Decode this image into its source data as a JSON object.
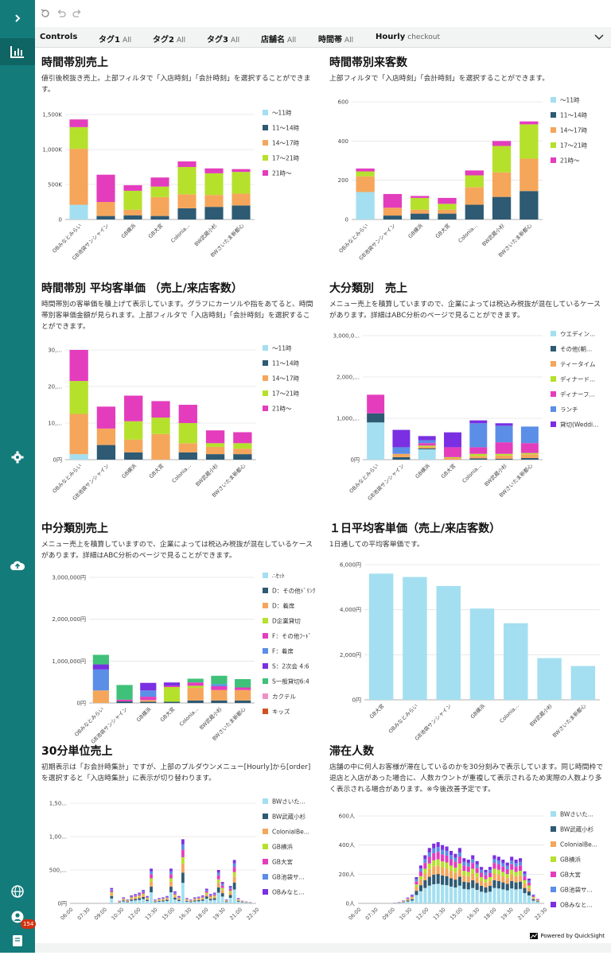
{
  "toolbar": {
    "undo": "undo",
    "redo": "redo"
  },
  "controls": {
    "label": "Controls",
    "filters": [
      {
        "name": "タグ1",
        "value": "All"
      },
      {
        "name": "タグ2",
        "value": "All"
      },
      {
        "name": "タグ3",
        "value": "All"
      },
      {
        "name": "店舗名",
        "value": "All"
      },
      {
        "name": "時間帯",
        "value": "All"
      },
      {
        "name": "Hourly",
        "value": "checkout"
      }
    ]
  },
  "colors": {
    "sidebar": "#147b7b",
    "palette": [
      "#a3dff0",
      "#2e5a73",
      "#f5a65b",
      "#b5e12c",
      "#e33dbd",
      "#5b8ee6",
      "#7a2fe2",
      "#3fc17a",
      "#f090c8",
      "#d2501e"
    ]
  },
  "sidebar_icons": [
    "chevron-right-icon",
    "dashboard-icon",
    "settings-icon",
    "upload-icon",
    "globe-icon",
    "user-icon",
    "book-icon"
  ],
  "notification_count": "154",
  "powered_by": "Powered by QuickSight",
  "panels": [
    {
      "title": "時間帯別売上",
      "desc": "値引後税抜き売上。上部フィルタで「入店時刻」「会計時刻」を選択することができます。",
      "chart_data": {
        "type": "bar",
        "stacked": true,
        "categories": [
          "OBみなとみらい",
          "GB池袋サンシャイン",
          "GB横浜",
          "GB大宮",
          "Colonia...",
          "BW武蔵小杉",
          "BWさいたま新都心"
        ],
        "yticks": [
          "0",
          "500K",
          "1,000K",
          "1,500K"
        ],
        "ymax": 1500,
        "series": [
          {
            "name": "～11時",
            "values": [
              210,
              0,
              0,
              0,
              0,
              0,
              0
            ]
          },
          {
            "name": "11～14時",
            "values": [
              0,
              50,
              60,
              50,
              160,
              180,
              200
            ]
          },
          {
            "name": "14～17時",
            "values": [
              800,
              200,
              80,
              270,
              200,
              170,
              170
            ]
          },
          {
            "name": "17～21時",
            "values": [
              310,
              0,
              270,
              150,
              390,
              310,
              310
            ]
          },
          {
            "name": "21時～",
            "values": [
              110,
              390,
              80,
              130,
              80,
              70,
              40
            ]
          }
        ],
        "legend": "right"
      }
    },
    {
      "title": "時間帯別来客数",
      "desc": "上部フィルタで「入店時刻」「会計時刻」を選択することができます。",
      "chart_data": {
        "type": "bar",
        "stacked": true,
        "categories": [
          "OBみなとみらい",
          "GB池袋サンシャイン",
          "GB横浜",
          "GB大宮",
          "Colonia...",
          "BW武蔵小杉",
          "BWさいたま新都心"
        ],
        "yticks": [
          "0",
          "200",
          "400",
          "600"
        ],
        "ymax": 600,
        "series": [
          {
            "name": "～11時",
            "values": [
              140,
              0,
              0,
              0,
              0,
              0,
              0
            ]
          },
          {
            "name": "11～14時",
            "values": [
              0,
              20,
              30,
              30,
              75,
              115,
              145
            ]
          },
          {
            "name": "14～17時",
            "values": [
              80,
              40,
              20,
              20,
              90,
              125,
              165
            ]
          },
          {
            "name": "17～21時",
            "values": [
              25,
              0,
              60,
              30,
              60,
              135,
              175
            ]
          },
          {
            "name": "21時～",
            "values": [
              15,
              70,
              10,
              30,
              25,
              25,
              15
            ]
          }
        ],
        "legend": "right"
      }
    },
    {
      "title": "時間帯別 平均客単価 （売上/来店客数）",
      "desc": "時間帯別の客単価を積上げて表示しています。グラフにカーソルや指をあてると、時間帯別客単価金額が見られます。上部フィルタで「入店時刻」「会計時刻」を選択することができます。",
      "chart_data": {
        "type": "bar",
        "stacked": true,
        "categories": [
          "OBみなとみらい",
          "GB池袋サンシャイン",
          "GB横浜",
          "GB大宮",
          "Colonia...",
          "BW武蔵小杉",
          "BWさいたま新都心"
        ],
        "yticks": [
          "0円",
          "10,...",
          "20,...",
          "30,..."
        ],
        "ymax": 30,
        "series": [
          {
            "name": "～11時",
            "values": [
              1.5,
              0,
              0,
              0,
              0,
              0,
              0
            ]
          },
          {
            "name": "11～14時",
            "values": [
              0,
              4,
              2,
              0,
              2,
              1.5,
              1.5
            ]
          },
          {
            "name": "14～17時",
            "values": [
              11,
              4.5,
              3.5,
              7,
              2.5,
              2,
              1.5
            ]
          },
          {
            "name": "17～21時",
            "values": [
              9,
              0,
              5,
              4.5,
              5.5,
              1,
              1.5
            ]
          },
          {
            "name": "21時～",
            "values": [
              8.5,
              6,
              7,
              4.5,
              5,
              3.5,
              3
            ]
          }
        ],
        "legend": "right"
      }
    },
    {
      "title": "大分類別　売上",
      "desc": "メニュー売上を積算していますので、企業によっては税込み税抜が混在しているケースがあります。詳細はABC分析のページで見ることができます。",
      "chart_data": {
        "type": "bar",
        "stacked": true,
        "categories": [
          "OBみなとみらい",
          "GB池袋サンシャイン",
          "GB横浜",
          "GB大宮",
          "Colonia...",
          "BW武蔵小杉",
          "BWさいたま新都心"
        ],
        "yticks": [
          "0円",
          "1,000,...",
          "2,000,...",
          "3,000,0..."
        ],
        "ymax": 3000,
        "series": [
          {
            "name": "ウエディン...",
            "values": [
              900,
              0,
              250,
              0,
              0,
              0,
              0
            ]
          },
          {
            "name": "その他(朝...",
            "values": [
              220,
              60,
              20,
              0,
              30,
              20,
              40
            ]
          },
          {
            "name": "ティータイム",
            "values": [
              0,
              80,
              40,
              40,
              60,
              80,
              90
            ]
          },
          {
            "name": "ディナード...",
            "values": [
              0,
              0,
              30,
              20,
              50,
              40,
              30
            ]
          },
          {
            "name": "ディナーフ...",
            "values": [
              450,
              0,
              60,
              240,
              160,
              280,
              240
            ]
          },
          {
            "name": "ランチ",
            "values": [
              0,
              160,
              70,
              0,
              580,
              400,
              400
            ]
          },
          {
            "name": "貸切(Weddi...",
            "values": [
              0,
              420,
              100,
              360,
              70,
              60,
              0
            ]
          }
        ],
        "legend": "right"
      }
    },
    {
      "title": "中分類別売上",
      "desc": "メニュー売上を積算していますので、企業によっては税込み税抜が混在しているケースがあります。詳細はABC分析のページで見ることができます。",
      "chart_data": {
        "type": "bar",
        "stacked": true,
        "categories": [
          "OBみなとみらい",
          "GB池袋サンシャイン",
          "GB横浜",
          "GB大宮",
          "Colonia...",
          "BW武蔵小杉",
          "BWさいたま新都心"
        ],
        "yticks": [
          "0円",
          "1,000,000円",
          "2,000,000円",
          "3,000,000円"
        ],
        "ymax": 3000,
        "series": [
          {
            "name": "∴ｾｯﾄ",
            "values": [
              0,
              0,
              0,
              0,
              0,
              0,
              0
            ]
          },
          {
            "name": "D：その他ﾄﾞﾘﾝｸ",
            "values": [
              0,
              40,
              30,
              30,
              60,
              60,
              60
            ]
          },
          {
            "name": "D：着席",
            "values": [
              300,
              0,
              40,
              0,
              300,
              250,
              250
            ]
          },
          {
            "name": "D企業貸切",
            "values": [
              0,
              0,
              0,
              350,
              50,
              0,
              0
            ]
          },
          {
            "name": "F：その他ﾌｰﾄﾞ",
            "values": [
              0,
              40,
              80,
              30,
              80,
              90,
              60
            ]
          },
          {
            "name": "F：着席",
            "values": [
              500,
              0,
              150,
              0,
              0,
              50,
              0
            ]
          },
          {
            "name": "S：2次会 4:6",
            "values": [
              120,
              0,
              180,
              80,
              0,
              0,
              0
            ]
          },
          {
            "name": "S一般貸切6:4",
            "values": [
              230,
              350,
              0,
              0,
              90,
              200,
              200
            ]
          },
          {
            "name": "カクテル",
            "values": [
              0,
              0,
              0,
              0,
              0,
              0,
              0
            ]
          },
          {
            "name": "キッズ",
            "values": [
              0,
              0,
              0,
              0,
              0,
              0,
              0
            ]
          }
        ],
        "legend": "right"
      }
    },
    {
      "title": "１日平均客単価（売上/来店客数）",
      "desc": "1日通しての平均客単価です。",
      "chart_data": {
        "type": "bar",
        "stacked": false,
        "categories": [
          "GB大宮",
          "OBみなとみらい",
          "GB池袋サンシャイン",
          "GB横浜",
          "Colonia...",
          "BW武蔵小杉",
          "BWさいたま新都心"
        ],
        "yticks": [
          "0円",
          "2,000円",
          "4,000円",
          "6,000円"
        ],
        "ymax": 6000,
        "series": [
          {
            "values": [
              5600,
              5450,
              5050,
              4050,
              3400,
              1850,
              1500
            ]
          }
        ]
      }
    },
    {
      "title": "30分単位売上",
      "desc": "初期表示は「お会計時集計」ですが、上部のプルダウンメニュー[Hourly]から[order]を選択すると「入店時集計」に表示が切り替わります。",
      "chart_data": {
        "type": "bar",
        "stacked": true,
        "xticks": [
          "06:00",
          "07:30",
          "09:00",
          "10:30",
          "12:00",
          "13:30",
          "15:00",
          "16:30",
          "18:00",
          "19:30",
          "21:00",
          "22:30"
        ],
        "yticks": [
          "0円",
          "500,...",
          "1,00...",
          "1,50..."
        ],
        "ymax": 1500,
        "series_names": [
          "BWさいた...",
          "BW武蔵小杉",
          "ColonialBe...",
          "GB横浜",
          "GB大宮",
          "GB池袋サ...",
          "OBみなと..."
        ],
        "totals": [
          0,
          0,
          0,
          0,
          0,
          0,
          0,
          0,
          0,
          0,
          230,
          0,
          40,
          90,
          60,
          120,
          140,
          160,
          200,
          110,
          520,
          60,
          80,
          90,
          110,
          520,
          180,
          110,
          960,
          80,
          60,
          90,
          100,
          120,
          220,
          140,
          160,
          500,
          320,
          60,
          260,
          650,
          80,
          40,
          30,
          20,
          0
        ],
        "legend": "right"
      }
    },
    {
      "title": "滞在人数",
      "desc": "店舗の中に何人お客様が滞在しているのかを30分刻みで表示しています。同じ時間枠で退店と入店があった場合に、人数カウントが重複して表示されるため実際の人数より多く表示される場合があります。※今後改善予定です。",
      "chart_data": {
        "type": "bar",
        "stacked": true,
        "xticks": [
          "06:00",
          "07:30",
          "09:00",
          "10:30",
          "12:00",
          "13:30",
          "15:00",
          "16:30",
          "18:00",
          "19:30",
          "21:00",
          "22:30"
        ],
        "yticks": [
          "0人",
          "200人",
          "400人",
          "600人"
        ],
        "ymax": 600,
        "series_names": [
          "BWさいた...",
          "BW武蔵小杉",
          "ColonialBe...",
          "GB横浜",
          "GB大宮",
          "GB池袋サ...",
          "OBみなと..."
        ],
        "totals": [
          0,
          0,
          0,
          0,
          0,
          0,
          0,
          0,
          5,
          10,
          20,
          40,
          60,
          180,
          260,
          330,
          380,
          410,
          420,
          400,
          390,
          360,
          340,
          380,
          310,
          300,
          330,
          290,
          250,
          230,
          250,
          330,
          320,
          300,
          280,
          320,
          300,
          310,
          220,
          170,
          60,
          30,
          0
        ],
        "legend": "right"
      }
    }
  ]
}
